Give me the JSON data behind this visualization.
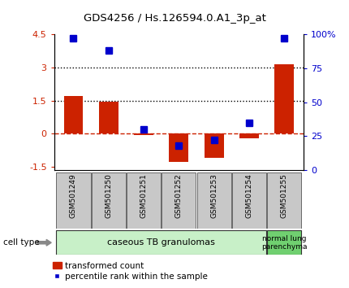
{
  "title": "GDS4256 / Hs.126594.0.A1_3p_at",
  "samples": [
    "GSM501249",
    "GSM501250",
    "GSM501251",
    "GSM501252",
    "GSM501253",
    "GSM501254",
    "GSM501255"
  ],
  "transformed_counts": [
    1.7,
    1.45,
    -0.05,
    -1.3,
    -1.1,
    -0.2,
    3.15
  ],
  "percentile_ranks": [
    97,
    88,
    30,
    18,
    22,
    35,
    97
  ],
  "ylim_left": [
    -1.65,
    4.5
  ],
  "ylim_right": [
    0,
    100
  ],
  "yticks_left": [
    -1.5,
    0,
    1.5,
    3,
    4.5
  ],
  "yticks_right": [
    0,
    25,
    50,
    75,
    100
  ],
  "ytick_labels_left": [
    "-1.5",
    "0",
    "1.5",
    "3",
    "4.5"
  ],
  "ytick_labels_right": [
    "0",
    "25",
    "50",
    "75",
    "100%"
  ],
  "hlines_dotted": [
    1.5,
    3.0
  ],
  "hline_dashed": 0,
  "bar_color": "#cc2200",
  "marker_color": "#0000cc",
  "cell_type_label": "cell type",
  "group1_label": "caseous TB granulomas",
  "group2_label": "normal lung\nparenchyma",
  "group1_indices": [
    0,
    1,
    2,
    3,
    4,
    5
  ],
  "group2_indices": [
    6
  ],
  "legend_bar": "transformed count",
  "legend_marker": "percentile rank within the sample",
  "bar_width": 0.55,
  "marker_size": 6,
  "group1_color": "#c8f0c8",
  "group2_color": "#70d070",
  "tick_label_area_color": "#c8c8c8",
  "bg_color": "#ffffff"
}
